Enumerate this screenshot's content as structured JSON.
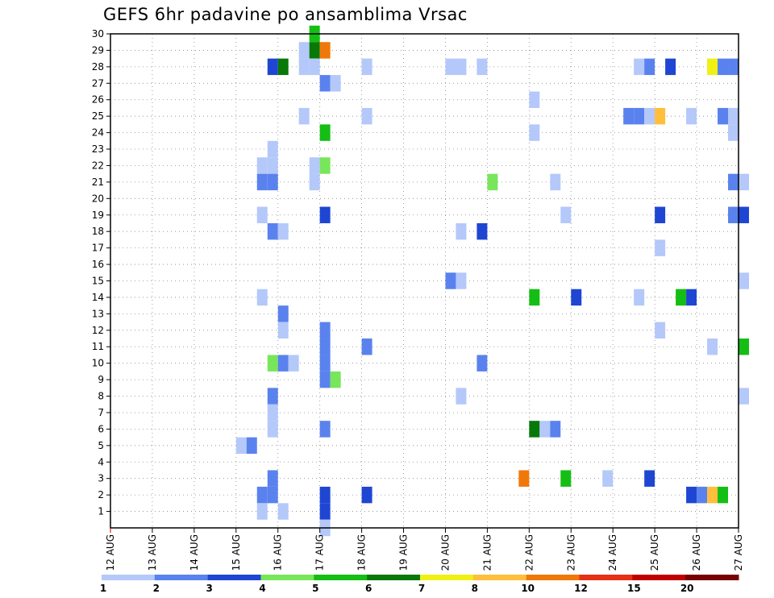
{
  "chart_data": {
    "type": "heatmap",
    "title": "GEFS 6hr padavine po ansamblima Vrsac",
    "x_ticks": [
      "12 AUG",
      "13 AUG",
      "14 AUG",
      "15 AUG",
      "16 AUG",
      "17 AUG",
      "18 AUG",
      "19 AUG",
      "20 AUG",
      "21 AUG",
      "22 AUG",
      "23 AUG",
      "24 AUG",
      "25 AUG",
      "26 AUG",
      "27 AUG"
    ],
    "y_ticks": [
      1,
      2,
      3,
      4,
      5,
      6,
      7,
      8,
      9,
      10,
      11,
      12,
      13,
      14,
      15,
      16,
      17,
      18,
      19,
      20,
      21,
      22,
      23,
      24,
      25,
      26,
      27,
      28,
      29,
      30
    ],
    "x_range_days": [
      12,
      27
    ],
    "y_range": [
      0,
      30
    ],
    "grid": true,
    "colorbar": {
      "labels": [
        "1",
        "2",
        "3",
        "4",
        "5",
        "6",
        "7",
        "8",
        "10",
        "12",
        "15",
        "20"
      ],
      "colors": [
        "#b4c8fa",
        "#5a82ee",
        "#1e46d2",
        "#78e65a",
        "#14be14",
        "#087808",
        "#f0f014",
        "#ffbe3c",
        "#f0780a",
        "#e63214",
        "#be0000",
        "#780000"
      ]
    },
    "cells": [
      [
        16.75,
        30,
        5
      ],
      [
        16.5,
        29,
        1
      ],
      [
        16.75,
        29,
        6
      ],
      [
        17.0,
        29,
        9
      ],
      [
        15.75,
        28,
        3
      ],
      [
        16.0,
        28,
        6
      ],
      [
        16.5,
        28,
        1
      ],
      [
        16.75,
        28,
        1
      ],
      [
        18.0,
        28,
        1
      ],
      [
        20.0,
        28,
        1
      ],
      [
        20.25,
        28,
        1
      ],
      [
        20.75,
        28,
        1
      ],
      [
        24.5,
        28,
        1
      ],
      [
        24.75,
        28,
        2
      ],
      [
        25.25,
        28,
        3
      ],
      [
        26.25,
        28,
        7
      ],
      [
        26.5,
        28,
        2
      ],
      [
        26.75,
        28,
        2
      ],
      [
        17.0,
        27,
        2
      ],
      [
        17.25,
        27,
        1
      ],
      [
        22.0,
        26,
        1
      ],
      [
        16.5,
        25,
        1
      ],
      [
        18.0,
        25,
        1
      ],
      [
        24.25,
        25,
        2
      ],
      [
        24.5,
        25,
        2
      ],
      [
        24.75,
        25,
        1
      ],
      [
        25.0,
        25,
        8
      ],
      [
        25.75,
        25,
        1
      ],
      [
        26.5,
        25,
        2
      ],
      [
        26.75,
        25,
        1
      ],
      [
        17.0,
        24,
        5
      ],
      [
        22.0,
        24,
        1
      ],
      [
        26.75,
        24,
        1
      ],
      [
        15.75,
        23,
        1
      ],
      [
        15.5,
        22,
        1
      ],
      [
        15.75,
        22,
        1
      ],
      [
        16.75,
        22,
        1
      ],
      [
        17.0,
        22,
        4
      ],
      [
        15.5,
        21,
        2
      ],
      [
        15.75,
        21,
        2
      ],
      [
        16.75,
        21,
        1
      ],
      [
        21.0,
        21,
        4
      ],
      [
        22.5,
        21,
        1
      ],
      [
        26.75,
        21,
        2
      ],
      [
        27.0,
        21,
        1
      ],
      [
        15.5,
        19,
        1
      ],
      [
        17.0,
        19,
        3
      ],
      [
        22.75,
        19,
        1
      ],
      [
        25.0,
        19,
        3
      ],
      [
        26.75,
        19,
        2
      ],
      [
        27.0,
        19,
        3
      ],
      [
        15.75,
        18,
        2
      ],
      [
        16.0,
        18,
        1
      ],
      [
        20.25,
        18,
        1
      ],
      [
        20.75,
        18,
        3
      ],
      [
        25.0,
        17,
        1
      ],
      [
        20.0,
        15,
        2
      ],
      [
        20.25,
        15,
        1
      ],
      [
        27.0,
        15,
        1
      ],
      [
        15.5,
        14,
        1
      ],
      [
        22.0,
        14,
        5
      ],
      [
        23.0,
        14,
        3
      ],
      [
        24.5,
        14,
        1
      ],
      [
        25.5,
        14,
        5
      ],
      [
        25.75,
        14,
        3
      ],
      [
        16.0,
        13,
        2
      ],
      [
        16.0,
        12,
        1
      ],
      [
        17.0,
        12,
        2
      ],
      [
        25.0,
        12,
        1
      ],
      [
        17.0,
        11,
        2
      ],
      [
        18.0,
        11,
        2
      ],
      [
        26.25,
        11,
        1
      ],
      [
        27.0,
        11,
        5
      ],
      [
        15.75,
        10,
        4
      ],
      [
        16.0,
        10,
        2
      ],
      [
        16.25,
        10,
        1
      ],
      [
        17.0,
        10,
        2
      ],
      [
        20.75,
        10,
        2
      ],
      [
        17.0,
        9,
        2
      ],
      [
        17.25,
        9,
        4
      ],
      [
        15.75,
        8,
        2
      ],
      [
        20.25,
        8,
        1
      ],
      [
        27.0,
        8,
        1
      ],
      [
        15.75,
        7,
        1
      ],
      [
        15.75,
        6,
        1
      ],
      [
        17.0,
        6,
        2
      ],
      [
        22.0,
        6,
        6
      ],
      [
        22.25,
        6,
        1
      ],
      [
        22.5,
        6,
        2
      ],
      [
        15.0,
        5,
        1
      ],
      [
        15.25,
        5,
        2
      ],
      [
        21.75,
        3,
        9
      ],
      [
        22.75,
        3,
        5
      ],
      [
        23.75,
        3,
        1
      ],
      [
        24.75,
        3,
        3
      ],
      [
        15.75,
        3,
        2
      ],
      [
        15.5,
        2,
        2
      ],
      [
        15.75,
        2,
        2
      ],
      [
        17.0,
        2,
        3
      ],
      [
        18.0,
        2,
        3
      ],
      [
        25.75,
        2,
        3
      ],
      [
        26.0,
        2,
        2
      ],
      [
        26.25,
        2,
        8
      ],
      [
        26.5,
        2,
        5
      ],
      [
        15.5,
        1,
        1
      ],
      [
        16.0,
        1,
        1
      ],
      [
        17.0,
        1,
        3
      ],
      [
        17.0,
        0,
        1
      ]
    ]
  }
}
